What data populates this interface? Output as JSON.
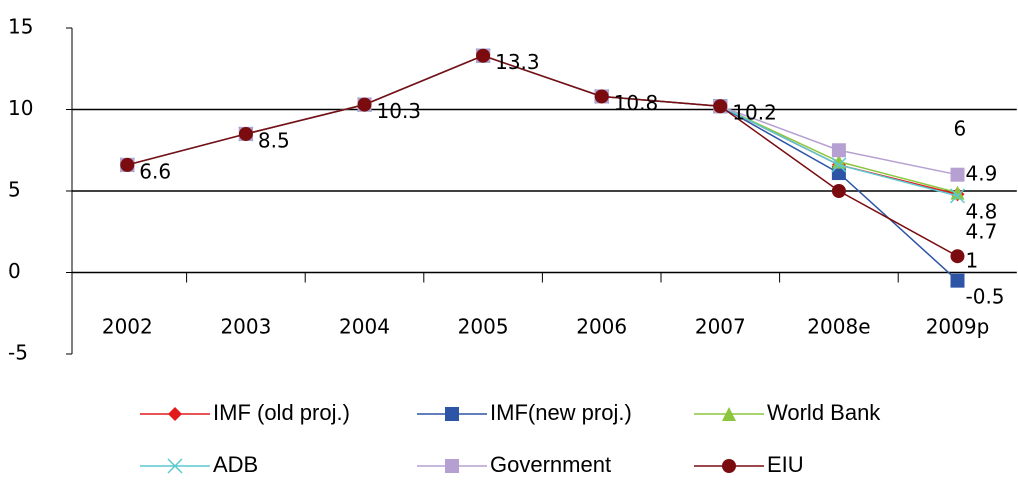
{
  "chart_data": {
    "type": "line",
    "categories": [
      "2002",
      "2003",
      "2004",
      "2005",
      "2006",
      "2007",
      "2008e",
      "2009p"
    ],
    "ylim": [
      -5,
      15
    ],
    "yticks": [
      -5,
      0,
      5,
      10,
      15
    ],
    "grid": true,
    "series": [
      {
        "name": "IMF (old proj.)",
        "color": "#e31a1c",
        "marker": "diamond",
        "values": [
          6.6,
          8.5,
          10.3,
          13.3,
          10.8,
          10.2,
          6.6,
          4.8
        ],
        "value_labels": [
          null,
          null,
          null,
          null,
          null,
          null,
          null,
          "4.8"
        ]
      },
      {
        "name": "IMF(new proj.)",
        "color": "#2e54a6",
        "marker": "square",
        "values": [
          6.6,
          8.5,
          10.3,
          13.3,
          10.8,
          10.2,
          6.1,
          -0.5
        ],
        "value_labels": [
          null,
          null,
          null,
          null,
          null,
          null,
          null,
          "-0.5"
        ]
      },
      {
        "name": "World Bank",
        "color": "#8cc63f",
        "marker": "triangle",
        "values": [
          6.6,
          8.5,
          10.3,
          13.3,
          10.8,
          10.2,
          6.8,
          4.9
        ],
        "value_labels": [
          null,
          null,
          null,
          null,
          null,
          null,
          null,
          "4.9"
        ]
      },
      {
        "name": "ADB",
        "color": "#5cc8d2",
        "marker": "x",
        "values": [
          6.6,
          8.5,
          10.3,
          13.3,
          10.8,
          10.2,
          6.6,
          4.7
        ],
        "value_labels": [
          null,
          null,
          null,
          null,
          null,
          null,
          null,
          "4.7"
        ]
      },
      {
        "name": "Government",
        "color": "#b6a0d2",
        "marker": "square",
        "values": [
          6.6,
          8.5,
          10.3,
          13.3,
          10.8,
          10.2,
          7.5,
          6
        ],
        "value_labels": [
          null,
          null,
          null,
          null,
          null,
          null,
          null,
          "6"
        ]
      },
      {
        "name": "EIU",
        "color": "#7a0c10",
        "marker": "circle",
        "values": [
          6.6,
          8.5,
          10.3,
          13.3,
          10.8,
          10.2,
          5,
          1
        ],
        "value_labels": [
          "6.6",
          "8.5",
          "10.3",
          "13.3",
          "10.8",
          "10.2",
          null,
          "1"
        ]
      }
    ]
  }
}
